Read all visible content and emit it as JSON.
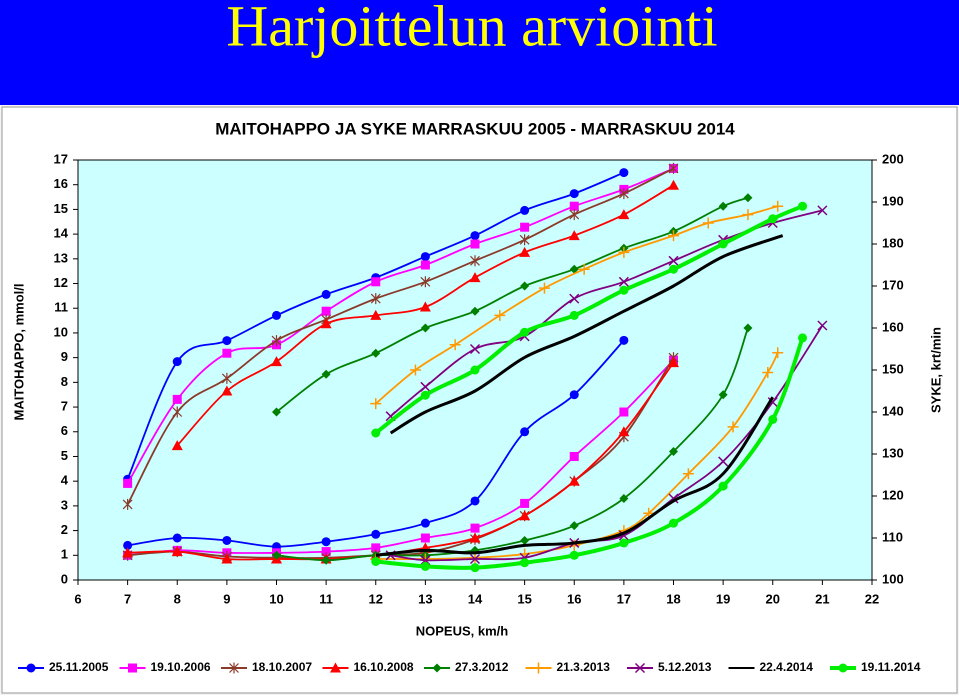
{
  "header": {
    "title": "Harjoittelun arviointi"
  },
  "chart_data": {
    "type": "line",
    "title": "MAITOHAPPO JA SYKE  MARRASKUU 2005 - MARRASKUU 2014",
    "xlabel": "NOPEUS, km/h",
    "ylabel": "MAITOHAPPO, mmol/l",
    "y2label": "SYKE, krt/min",
    "xlim": [
      6,
      22
    ],
    "xticks": [
      6,
      7,
      8,
      9,
      10,
      11,
      12,
      13,
      14,
      15,
      16,
      17,
      18,
      19,
      20,
      21,
      22
    ],
    "ylim": [
      0,
      17
    ],
    "yticks": [
      0,
      1,
      2,
      3,
      4,
      5,
      6,
      7,
      8,
      9,
      10,
      11,
      12,
      13,
      14,
      15,
      16,
      17
    ],
    "y2lim": [
      100,
      200
    ],
    "y2ticks": [
      100,
      110,
      120,
      130,
      140,
      150,
      160,
      170,
      180,
      190,
      200
    ],
    "background": "#ccffff",
    "series": [
      {
        "name": "25.11.2005",
        "color": "#0000ff",
        "marker": "circle",
        "x": [
          7,
          8,
          9,
          10,
          11,
          12,
          13,
          14,
          15,
          16,
          17
        ],
        "values": [
          1.4,
          1.7,
          1.6,
          1.35,
          1.55,
          1.85,
          2.3,
          3.2,
          6.0,
          7.5,
          9.7
        ],
        "hr_x": [
          7,
          8,
          9,
          10,
          11,
          12,
          13,
          14,
          15,
          16,
          17
        ],
        "hr_values": [
          124,
          152,
          157,
          163,
          168,
          172,
          177,
          182,
          188,
          192,
          197
        ]
      },
      {
        "name": "19.10.2006",
        "color": "#ff00ff",
        "marker": "square",
        "x": [
          7,
          8,
          9,
          10,
          11,
          12,
          13,
          14,
          15,
          16,
          17,
          18
        ],
        "values": [
          1.0,
          1.2,
          1.1,
          1.1,
          1.15,
          1.3,
          1.7,
          2.1,
          3.1,
          5.0,
          6.8,
          8.9
        ],
        "hr_x": [
          7,
          8,
          9,
          10,
          11,
          12,
          13,
          14,
          15,
          16,
          17,
          18
        ],
        "hr_values": [
          123,
          143,
          154,
          156,
          164,
          171,
          175,
          180,
          184,
          189,
          193,
          198
        ]
      },
      {
        "name": "18.10.2007",
        "color": "#8b3a2a",
        "marker": "asterisk",
        "x": [
          7,
          8,
          9,
          10,
          11,
          12,
          13,
          14,
          15,
          16,
          17,
          18
        ],
        "values": [
          1.0,
          1.15,
          0.95,
          0.9,
          0.9,
          1.0,
          1.1,
          1.65,
          2.6,
          4.0,
          5.8,
          9.0
        ],
        "hr_x": [
          7,
          8,
          9,
          10,
          11,
          12,
          13,
          14,
          15,
          16,
          17,
          18
        ],
        "hr_values": [
          118,
          140,
          148,
          157,
          162,
          167,
          171,
          176,
          181,
          187,
          192,
          198
        ]
      },
      {
        "name": "16.10.2008",
        "color": "#ff0000",
        "marker": "triangle",
        "x": [
          7,
          8,
          9,
          10,
          11,
          12,
          13,
          14,
          15,
          16,
          17,
          18
        ],
        "values": [
          1.1,
          1.15,
          0.85,
          0.85,
          0.85,
          1.0,
          1.3,
          1.7,
          2.6,
          4.0,
          6.0,
          8.8
        ],
        "hr_x": [
          8,
          9,
          10,
          11,
          12,
          13,
          14,
          15,
          16,
          17,
          18
        ],
        "hr_values": [
          132,
          145,
          152,
          161,
          163,
          165,
          172,
          178,
          182,
          187,
          194
        ]
      },
      {
        "name": "27.3.2012",
        "color": "#008000",
        "marker": "diamond",
        "x": [
          10,
          11,
          12,
          13,
          14,
          15,
          16,
          17,
          18,
          19,
          19.5
        ],
        "values": [
          1.0,
          0.8,
          1.0,
          1.0,
          1.2,
          1.6,
          2.2,
          3.3,
          5.2,
          7.5,
          10.2
        ],
        "hr_x": [
          10,
          11,
          12,
          13,
          14,
          15,
          16,
          17,
          18,
          19,
          19.5
        ],
        "hr_values": [
          140,
          149,
          154,
          160,
          164,
          170,
          174,
          179,
          183,
          189,
          191
        ]
      },
      {
        "name": "21.3.2013",
        "color": "#ff9900",
        "marker": "plus",
        "x": [
          12,
          13,
          14,
          15,
          16,
          17,
          17.5,
          18.3,
          19.2,
          19.9,
          20.1
        ],
        "values": [
          0.85,
          0.85,
          0.9,
          1.05,
          1.4,
          2.0,
          2.7,
          4.3,
          6.2,
          8.4,
          9.2
        ],
        "hr_x": [
          12,
          12.8,
          13.6,
          14.5,
          15.4,
          16.2,
          17,
          18,
          18.7,
          19.5,
          20.1
        ],
        "hr_values": [
          142,
          150,
          156,
          163,
          169.5,
          174,
          178,
          182,
          185,
          187,
          189
        ]
      },
      {
        "name": "5.12.2013",
        "color": "#800080",
        "marker": "x",
        "x": [
          12.3,
          13,
          14,
          15,
          16,
          17,
          18,
          19,
          20,
          21
        ],
        "values": [
          1.0,
          0.8,
          0.85,
          0.9,
          1.5,
          1.8,
          3.3,
          4.8,
          7.2,
          10.3
        ],
        "hr_x": [
          12.3,
          13,
          14,
          15,
          16,
          17,
          18,
          19,
          20,
          21
        ],
        "hr_values": [
          139,
          146,
          155,
          158,
          167,
          171,
          176,
          181,
          185,
          188
        ]
      },
      {
        "name": "22.4.2014",
        "color": "#000000",
        "marker": "none",
        "x": [
          12,
          13,
          14,
          15,
          16,
          17,
          18,
          19,
          20
        ],
        "values": [
          1.0,
          1.2,
          1.1,
          1.4,
          1.5,
          1.9,
          3.2,
          4.3,
          7.4
        ],
        "hr_x": [
          12.3,
          13,
          14,
          15,
          16,
          17,
          18,
          19,
          20.2
        ],
        "hr_values": [
          135,
          140,
          145,
          153,
          158,
          164,
          170,
          177,
          182
        ]
      },
      {
        "name": "19.11.2014",
        "color": "#00ee00",
        "marker": "circle",
        "x": [
          12,
          13,
          14,
          15,
          16,
          17,
          18,
          19,
          20,
          20.6
        ],
        "values": [
          0.75,
          0.55,
          0.5,
          0.7,
          1.0,
          1.5,
          2.3,
          3.8,
          6.5,
          9.8
        ],
        "hr_x": [
          12,
          13,
          14,
          15,
          16,
          17,
          18,
          19,
          20,
          20.6
        ],
        "hr_values": [
          135,
          144,
          150,
          159,
          163,
          169,
          174,
          180,
          186,
          189
        ]
      }
    ]
  }
}
